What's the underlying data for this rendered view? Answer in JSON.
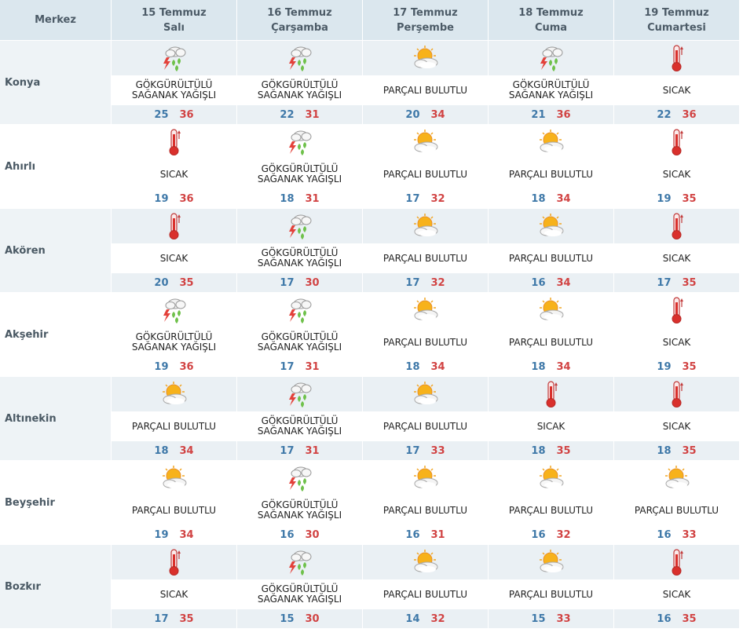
{
  "header": {
    "merkez_label": "Merkez",
    "days": [
      {
        "date": "15 Temmuz",
        "weekday": "Salı"
      },
      {
        "date": "16 Temmuz",
        "weekday": "Çarşamba"
      },
      {
        "date": "17 Temmuz",
        "weekday": "Perşembe"
      },
      {
        "date": "18 Temmuz",
        "weekday": "Cuma"
      },
      {
        "date": "19 Temmuz",
        "weekday": "Cumartesi"
      }
    ]
  },
  "conditions": {
    "storm": {
      "line1": "GÖKGÜRÜLTÜLÜ",
      "line2": "SAĞANAK YAĞIŞLI",
      "icon": "thunderstorm-rain-icon"
    },
    "partly": {
      "line1": "PARÇALI BULUTLU",
      "line2": "",
      "icon": "partly-cloudy-icon"
    },
    "hot": {
      "line1": "SICAK",
      "line2": "",
      "icon": "thermometer-hot-icon"
    }
  },
  "cities": [
    {
      "name": "Konya",
      "days": [
        {
          "cond": "storm",
          "min": "25",
          "max": "36"
        },
        {
          "cond": "storm",
          "min": "22",
          "max": "31"
        },
        {
          "cond": "partly",
          "min": "20",
          "max": "34"
        },
        {
          "cond": "storm",
          "min": "21",
          "max": "36"
        },
        {
          "cond": "hot",
          "min": "22",
          "max": "36"
        }
      ]
    },
    {
      "name": "Ahırlı",
      "days": [
        {
          "cond": "hot",
          "min": "19",
          "max": "36"
        },
        {
          "cond": "storm",
          "min": "18",
          "max": "31"
        },
        {
          "cond": "partly",
          "min": "17",
          "max": "32"
        },
        {
          "cond": "partly",
          "min": "18",
          "max": "34"
        },
        {
          "cond": "hot",
          "min": "19",
          "max": "35"
        }
      ]
    },
    {
      "name": "Akören",
      "days": [
        {
          "cond": "hot",
          "min": "20",
          "max": "35"
        },
        {
          "cond": "storm",
          "min": "17",
          "max": "30"
        },
        {
          "cond": "partly",
          "min": "17",
          "max": "32"
        },
        {
          "cond": "partly",
          "min": "16",
          "max": "34"
        },
        {
          "cond": "hot",
          "min": "17",
          "max": "35"
        }
      ]
    },
    {
      "name": "Akşehir",
      "days": [
        {
          "cond": "storm",
          "min": "19",
          "max": "36"
        },
        {
          "cond": "storm",
          "min": "17",
          "max": "31"
        },
        {
          "cond": "partly",
          "min": "18",
          "max": "34"
        },
        {
          "cond": "partly",
          "min": "18",
          "max": "34"
        },
        {
          "cond": "hot",
          "min": "19",
          "max": "35"
        }
      ]
    },
    {
      "name": "Altınekin",
      "days": [
        {
          "cond": "partly",
          "min": "18",
          "max": "34"
        },
        {
          "cond": "storm",
          "min": "17",
          "max": "31"
        },
        {
          "cond": "partly",
          "min": "17",
          "max": "33"
        },
        {
          "cond": "hot",
          "min": "18",
          "max": "35"
        },
        {
          "cond": "hot",
          "min": "18",
          "max": "35"
        }
      ]
    },
    {
      "name": "Beyşehir",
      "days": [
        {
          "cond": "partly",
          "min": "19",
          "max": "34"
        },
        {
          "cond": "storm",
          "min": "16",
          "max": "30"
        },
        {
          "cond": "partly",
          "min": "16",
          "max": "31"
        },
        {
          "cond": "partly",
          "min": "16",
          "max": "32"
        },
        {
          "cond": "partly",
          "min": "16",
          "max": "33"
        }
      ]
    },
    {
      "name": "Bozkır",
      "days": [
        {
          "cond": "hot",
          "min": "17",
          "max": "35"
        },
        {
          "cond": "storm",
          "min": "15",
          "max": "30"
        },
        {
          "cond": "partly",
          "min": "14",
          "max": "32"
        },
        {
          "cond": "partly",
          "min": "15",
          "max": "33"
        },
        {
          "cond": "hot",
          "min": "16",
          "max": "35"
        }
      ]
    }
  ],
  "colors": {
    "header_bg": "#dbe7ee",
    "min_temp": "#3e78a8",
    "max_temp": "#d14343"
  }
}
